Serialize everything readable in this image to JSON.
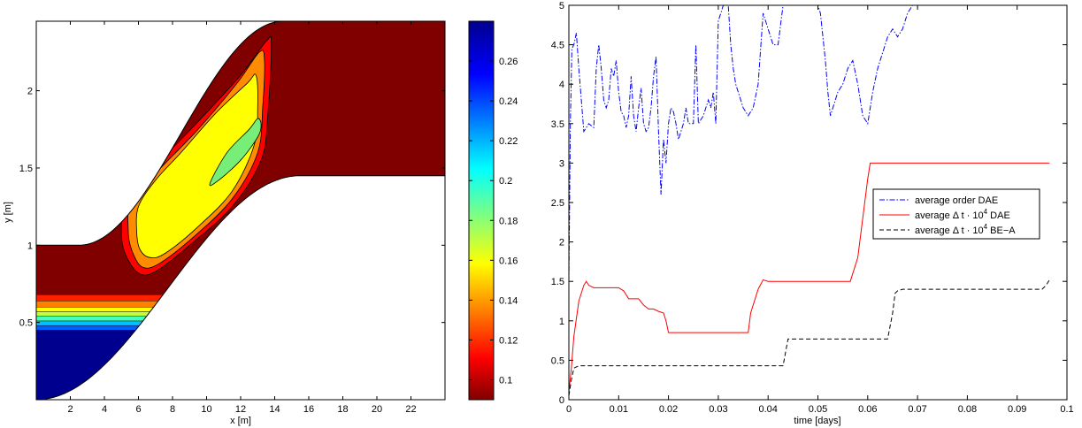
{
  "chart_data": [
    {
      "type": "heatmap",
      "xlabel": "x [m]",
      "ylabel": "y [m]",
      "xlim": [
        0,
        24
      ],
      "ylim": [
        0,
        2.45
      ],
      "xticks": [
        2,
        4,
        6,
        8,
        10,
        12,
        14,
        16,
        18,
        20,
        22
      ],
      "yticks": [
        0.5,
        1,
        1.5,
        2
      ],
      "background": "#800000",
      "domain": {
        "upper_boundary": {
          "start": [
            0,
            1.0
          ],
          "transition": [
            2.5,
            14.5
          ],
          "end": [
            16,
            2.45
          ],
          "plateau_y": 2.45,
          "low_y": 1.0
        },
        "lower_boundary": {
          "start": [
            0,
            0.0
          ],
          "transition": [
            0,
            15.5
          ],
          "end": [
            24,
            1.45
          ],
          "plateau_y": 1.45,
          "low_y": 0.0
        }
      },
      "bands": [
        {
          "y0": 0.0,
          "y1": 0.45,
          "value": 0.27,
          "color": "#00008f"
        },
        {
          "y0": 0.45,
          "y1": 0.48,
          "value": 0.23,
          "color": "#0060ff"
        },
        {
          "y0": 0.48,
          "y1": 0.51,
          "value": 0.21,
          "color": "#00c0ff"
        },
        {
          "y0": 0.51,
          "y1": 0.54,
          "value": 0.19,
          "color": "#40ffbf"
        },
        {
          "y0": 0.54,
          "y1": 0.57,
          "value": 0.17,
          "color": "#c0ff40"
        },
        {
          "y0": 0.57,
          "y1": 0.6,
          "value": 0.15,
          "color": "#ffff00"
        },
        {
          "y0": 0.6,
          "y1": 0.64,
          "value": 0.13,
          "color": "#ff8000"
        },
        {
          "y0": 0.64,
          "y1": 0.68,
          "value": 0.12,
          "color": "#ff2000"
        }
      ],
      "contours": [
        {
          "value": 0.12,
          "color": "#ff0000",
          "points": [
            [
              5.3,
              1.32
            ],
            [
              5.0,
              1.1
            ],
            [
              5.2,
              0.95
            ],
            [
              6.0,
              0.82
            ],
            [
              7.0,
              0.83
            ],
            [
              9.0,
              1.0
            ],
            [
              11.5,
              1.25
            ],
            [
              13.2,
              1.55
            ],
            [
              13.6,
              1.85
            ],
            [
              13.8,
              2.3
            ],
            [
              13.5,
              2.32
            ],
            [
              12.0,
              2.1
            ],
            [
              9.5,
              1.8
            ],
            [
              7.3,
              1.55
            ]
          ]
        },
        {
          "value": 0.13,
          "color": "#ff8c00",
          "points": [
            [
              5.6,
              1.3
            ],
            [
              5.4,
              1.1
            ],
            [
              5.6,
              0.97
            ],
            [
              6.2,
              0.86
            ],
            [
              7.2,
              0.88
            ],
            [
              9.2,
              1.05
            ],
            [
              11.5,
              1.3
            ],
            [
              13.0,
              1.6
            ],
            [
              13.3,
              1.9
            ],
            [
              13.4,
              2.2
            ],
            [
              13.1,
              2.25
            ],
            [
              11.8,
              2.05
            ],
            [
              9.5,
              1.75
            ],
            [
              7.3,
              1.5
            ]
          ]
        },
        {
          "value": 0.15,
          "color": "#ffff00",
          "points": [
            [
              6.0,
              1.25
            ],
            [
              5.9,
              1.08
            ],
            [
              6.1,
              0.97
            ],
            [
              6.7,
              0.92
            ],
            [
              7.6,
              0.95
            ],
            [
              9.5,
              1.12
            ],
            [
              11.5,
              1.35
            ],
            [
              12.8,
              1.65
            ],
            [
              13.0,
              1.9
            ],
            [
              12.9,
              2.1
            ],
            [
              12.4,
              2.05
            ],
            [
              10.5,
              1.85
            ],
            [
              8.5,
              1.6
            ],
            [
              7.0,
              1.42
            ]
          ]
        },
        {
          "value": 0.19,
          "color": "#77ee77",
          "points": [
            [
              10.2,
              1.4
            ],
            [
              10.7,
              1.42
            ],
            [
              12.0,
              1.55
            ],
            [
              13.0,
              1.7
            ],
            [
              13.2,
              1.78
            ],
            [
              13.0,
              1.82
            ],
            [
              12.5,
              1.75
            ],
            [
              11.2,
              1.6
            ]
          ]
        }
      ],
      "colorbar": {
        "range": [
          0.09,
          0.28
        ],
        "ticks": [
          0.1,
          0.12,
          0.14,
          0.16,
          0.18,
          0.2,
          0.22,
          0.24,
          0.26
        ]
      }
    },
    {
      "type": "line",
      "xlabel": "time [days]",
      "ylabel": "",
      "xlim": [
        0,
        0.1
      ],
      "ylim": [
        0,
        5
      ],
      "xticks": [
        0,
        0.01,
        0.02,
        0.03,
        0.04,
        0.05,
        0.06,
        0.07,
        0.08,
        0.09,
        0.1
      ],
      "yticks": [
        0,
        0.5,
        1,
        1.5,
        2,
        2.5,
        3,
        3.5,
        4,
        4.5,
        5
      ],
      "legend_position": "right-middle",
      "series": [
        {
          "name": "average order DAE",
          "color": "#0000ff",
          "dash": "6,2,1.5,2",
          "points": [
            [
              0,
              1.5
            ],
            [
              0.0003,
              3.5
            ],
            [
              0.0006,
              4.45
            ],
            [
              0.001,
              4.5
            ],
            [
              0.0015,
              4.65
            ],
            [
              0.002,
              4.2
            ],
            [
              0.0025,
              3.8
            ],
            [
              0.003,
              3.4
            ],
            [
              0.004,
              3.5
            ],
            [
              0.005,
              3.45
            ],
            [
              0.0055,
              4.2
            ],
            [
              0.006,
              4.5
            ],
            [
              0.0065,
              4.2
            ],
            [
              0.007,
              3.8
            ],
            [
              0.0075,
              3.7
            ],
            [
              0.008,
              3.8
            ],
            [
              0.0085,
              4.2
            ],
            [
              0.009,
              4.1
            ],
            [
              0.0095,
              4.3
            ],
            [
              0.01,
              3.9
            ],
            [
              0.0105,
              3.65
            ],
            [
              0.011,
              3.6
            ],
            [
              0.0115,
              3.45
            ],
            [
              0.012,
              3.6
            ],
            [
              0.0125,
              4.1
            ],
            [
              0.013,
              3.6
            ],
            [
              0.0135,
              3.4
            ],
            [
              0.014,
              3.7
            ],
            [
              0.0145,
              3.95
            ],
            [
              0.015,
              3.5
            ],
            [
              0.0155,
              3.4
            ],
            [
              0.016,
              3.45
            ],
            [
              0.0165,
              3.7
            ],
            [
              0.017,
              4.1
            ],
            [
              0.0175,
              4.35
            ],
            [
              0.018,
              3.4
            ],
            [
              0.0185,
              2.6
            ],
            [
              0.019,
              3.3
            ],
            [
              0.0195,
              3.0
            ],
            [
              0.02,
              3.5
            ],
            [
              0.0205,
              3.7
            ],
            [
              0.021,
              3.65
            ],
            [
              0.0215,
              3.5
            ],
            [
              0.022,
              3.3
            ],
            [
              0.0225,
              3.4
            ],
            [
              0.023,
              3.5
            ],
            [
              0.0235,
              3.7
            ],
            [
              0.024,
              3.5
            ],
            [
              0.025,
              3.5
            ],
            [
              0.0255,
              4.5
            ],
            [
              0.026,
              3.5
            ],
            [
              0.027,
              3.6
            ],
            [
              0.028,
              3.8
            ],
            [
              0.0285,
              3.7
            ],
            [
              0.029,
              3.9
            ],
            [
              0.0295,
              3.5
            ],
            [
              0.03,
              4.8
            ],
            [
              0.031,
              5.0
            ],
            [
              0.032,
              5.0
            ],
            [
              0.0325,
              4.5
            ],
            [
              0.033,
              4.2
            ],
            [
              0.0335,
              4.0
            ],
            [
              0.034,
              3.9
            ],
            [
              0.035,
              3.7
            ],
            [
              0.036,
              3.6
            ],
            [
              0.037,
              3.7
            ],
            [
              0.038,
              4.0
            ],
            [
              0.039,
              4.9
            ],
            [
              0.04,
              4.7
            ],
            [
              0.041,
              4.5
            ],
            [
              0.042,
              4.5
            ],
            [
              0.043,
              5.0
            ],
            [
              0.044,
              5.0
            ],
            [
              0.045,
              5.0
            ],
            [
              0.046,
              5.0
            ],
            [
              0.047,
              5.0
            ],
            [
              0.048,
              5.0
            ],
            [
              0.049,
              5.0
            ],
            [
              0.05,
              5.0
            ],
            [
              0.0505,
              4.9
            ],
            [
              0.051,
              4.6
            ],
            [
              0.0515,
              4.3
            ],
            [
              0.052,
              3.9
            ],
            [
              0.0525,
              3.6
            ],
            [
              0.053,
              3.7
            ],
            [
              0.054,
              3.9
            ],
            [
              0.055,
              4.0
            ],
            [
              0.056,
              4.2
            ],
            [
              0.057,
              4.3
            ],
            [
              0.058,
              4.0
            ],
            [
              0.059,
              3.6
            ],
            [
              0.06,
              3.5
            ],
            [
              0.061,
              3.9
            ],
            [
              0.062,
              4.2
            ],
            [
              0.063,
              4.4
            ],
            [
              0.064,
              4.6
            ],
            [
              0.065,
              4.7
            ],
            [
              0.066,
              4.6
            ],
            [
              0.067,
              4.7
            ],
            [
              0.068,
              4.9
            ],
            [
              0.069,
              5.0
            ],
            [
              0.07,
              5.0
            ],
            [
              0.075,
              5.0
            ],
            [
              0.08,
              5.0
            ],
            [
              0.085,
              5.0
            ],
            [
              0.09,
              5.0
            ],
            [
              0.095,
              5.0
            ],
            [
              0.0965,
              5.0
            ]
          ]
        },
        {
          "name": "average Δ t · 10^4 DAE",
          "color": "#ff0000",
          "dash": "",
          "points": [
            [
              0,
              0.1
            ],
            [
              0.0005,
              0.4
            ],
            [
              0.001,
              0.8
            ],
            [
              0.002,
              1.25
            ],
            [
              0.003,
              1.45
            ],
            [
              0.0035,
              1.5
            ],
            [
              0.004,
              1.45
            ],
            [
              0.005,
              1.42
            ],
            [
              0.007,
              1.42
            ],
            [
              0.008,
              1.42
            ],
            [
              0.009,
              1.42
            ],
            [
              0.01,
              1.42
            ],
            [
              0.011,
              1.38
            ],
            [
              0.012,
              1.28
            ],
            [
              0.013,
              1.28
            ],
            [
              0.014,
              1.28
            ],
            [
              0.015,
              1.2
            ],
            [
              0.016,
              1.15
            ],
            [
              0.017,
              1.15
            ],
            [
              0.018,
              1.12
            ],
            [
              0.019,
              1.1
            ],
            [
              0.0195,
              1.0
            ],
            [
              0.02,
              0.85
            ],
            [
              0.022,
              0.85
            ],
            [
              0.025,
              0.85
            ],
            [
              0.03,
              0.85
            ],
            [
              0.035,
              0.85
            ],
            [
              0.036,
              0.85
            ],
            [
              0.0365,
              1.1
            ],
            [
              0.037,
              1.2
            ],
            [
              0.038,
              1.4
            ],
            [
              0.039,
              1.52
            ],
            [
              0.04,
              1.5
            ],
            [
              0.042,
              1.5
            ],
            [
              0.045,
              1.5
            ],
            [
              0.05,
              1.5
            ],
            [
              0.055,
              1.5
            ],
            [
              0.0565,
              1.5
            ],
            [
              0.058,
              1.8
            ],
            [
              0.059,
              2.3
            ],
            [
              0.06,
              2.8
            ],
            [
              0.0605,
              3.0
            ],
            [
              0.062,
              3.0
            ],
            [
              0.07,
              3.0
            ],
            [
              0.08,
              3.0
            ],
            [
              0.09,
              3.0
            ],
            [
              0.0965,
              3.0
            ]
          ]
        },
        {
          "name": "average Δ t · 10^4 BE−A",
          "color": "#000000",
          "dash": "5,3",
          "points": [
            [
              0,
              0.05
            ],
            [
              0.0005,
              0.25
            ],
            [
              0.001,
              0.4
            ],
            [
              0.002,
              0.43
            ],
            [
              0.005,
              0.43
            ],
            [
              0.01,
              0.43
            ],
            [
              0.02,
              0.43
            ],
            [
              0.03,
              0.43
            ],
            [
              0.04,
              0.43
            ],
            [
              0.043,
              0.43
            ],
            [
              0.0435,
              0.6
            ],
            [
              0.044,
              0.77
            ],
            [
              0.045,
              0.77
            ],
            [
              0.05,
              0.77
            ],
            [
              0.055,
              0.77
            ],
            [
              0.06,
              0.77
            ],
            [
              0.064,
              0.77
            ],
            [
              0.065,
              1.1
            ],
            [
              0.0655,
              1.35
            ],
            [
              0.066,
              1.38
            ],
            [
              0.067,
              1.4
            ],
            [
              0.07,
              1.4
            ],
            [
              0.08,
              1.4
            ],
            [
              0.09,
              1.4
            ],
            [
              0.095,
              1.4
            ],
            [
              0.0958,
              1.45
            ],
            [
              0.0965,
              1.52
            ]
          ]
        }
      ]
    }
  ],
  "legend": {
    "entries": [
      {
        "main": "average order DAE",
        "sup": "",
        "tail": ""
      },
      {
        "main": "average Δ t · 10",
        "sup": "4",
        "tail": " DAE"
      },
      {
        "main": "average Δ t · 10",
        "sup": "4",
        "tail": " BE−A"
      }
    ]
  }
}
